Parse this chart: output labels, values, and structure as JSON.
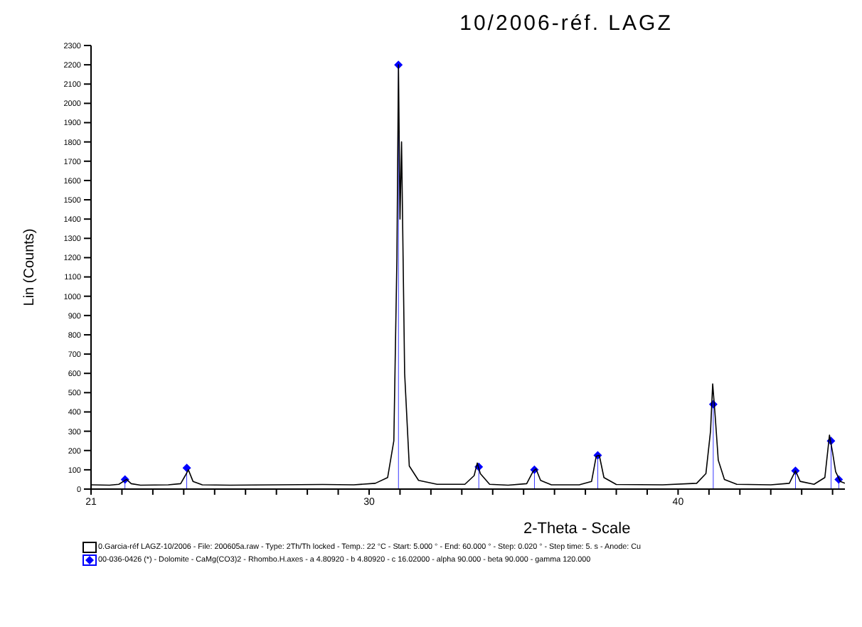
{
  "chart_data": {
    "type": "line",
    "title": "10/2006-réf. LAGZ",
    "xlabel": "2-Theta - Scale",
    "ylabel": "Lin (Counts)",
    "xlim": [
      21,
      45.4
    ],
    "xticks": [
      21,
      {
        "value": 22,
        "label": null
      },
      {
        "value": 23,
        "label": null
      },
      {
        "value": 24,
        "label": null
      },
      {
        "value": 25,
        "label": null
      },
      {
        "value": 26,
        "label": null
      },
      {
        "value": 27,
        "label": null
      },
      {
        "value": 28,
        "label": null
      },
      {
        "value": 29,
        "label": null
      },
      30,
      {
        "value": 31,
        "label": null
      },
      {
        "value": 32,
        "label": null
      },
      {
        "value": 33,
        "label": null
      },
      {
        "value": 34,
        "label": null
      },
      {
        "value": 35,
        "label": null
      },
      {
        "value": 36,
        "label": null
      },
      {
        "value": 37,
        "label": null
      },
      {
        "value": 38,
        "label": null
      },
      {
        "value": 39,
        "label": null
      },
      40,
      {
        "value": 41,
        "label": null
      },
      {
        "value": 42,
        "label": null
      },
      {
        "value": 43,
        "label": null
      },
      {
        "value": 44,
        "label": null
      },
      {
        "value": 45,
        "label": null
      }
    ],
    "ylim": [
      0,
      2300
    ],
    "yticks": [
      0,
      100,
      200,
      300,
      400,
      500,
      600,
      700,
      800,
      900,
      1000,
      1100,
      1200,
      1300,
      1400,
      1500,
      1600,
      1700,
      1800,
      1900,
      2000,
      2100,
      2200,
      2300
    ],
    "grid": false,
    "legend": "bottom",
    "series": [
      {
        "name": "0.Garcia-réf LAGZ-10/2006 - File: 200605a.raw - Type: 2Th/Th locked - Temp.: 22 °C - Start: 5.000 ° - End: 60.000 ° - Step: 0.020 ° - Step time: 5. s - Anode: Cu",
        "color": "#000000",
        "marker": "none",
        "x": [
          21,
          21.6,
          21.9,
          22.05,
          22.15,
          22.3,
          22.6,
          23.5,
          23.9,
          24.05,
          24.15,
          24.3,
          24.6,
          25.5,
          27,
          28.5,
          29.5,
          30.2,
          30.6,
          30.8,
          30.9,
          30.95,
          31.0,
          31.05,
          31.15,
          31.3,
          31.6,
          32.2,
          33.1,
          33.4,
          33.5,
          33.6,
          33.9,
          34.5,
          35.1,
          35.3,
          35.4,
          35.55,
          35.9,
          36.8,
          37.2,
          37.35,
          37.45,
          37.6,
          38,
          39.5,
          40.6,
          40.9,
          41.05,
          41.12,
          41.2,
          41.3,
          41.5,
          41.9,
          43,
          43.6,
          43.8,
          43.95,
          44.4,
          44.75,
          44.9,
          45.0,
          45.1,
          45.25,
          45.4
        ],
        "values": [
          22,
          20,
          25,
          40,
          50,
          28,
          20,
          22,
          28,
          70,
          100,
          40,
          22,
          20,
          22,
          24,
          22,
          30,
          60,
          250,
          1200,
          2200,
          1400,
          1800,
          600,
          120,
          45,
          25,
          25,
          70,
          135,
          80,
          25,
          20,
          28,
          90,
          105,
          45,
          22,
          22,
          40,
          170,
          175,
          60,
          24,
          22,
          30,
          80,
          300,
          545,
          380,
          150,
          50,
          25,
          22,
          30,
          95,
          40,
          25,
          60,
          280,
          190,
          90,
          40,
          30
        ]
      },
      {
        "type": "lollipop",
        "name": "00-036-0426 (*) - Dolomite - CaMg(CO3)2 - Rhombo.H.axes - a 4.80920 - b 4.80920 - c 16.02000 - alpha 90.000 - beta 90.000 - gamma 120.000",
        "color": "#0000ff",
        "marker": "diamond",
        "x": [
          22.1,
          24.1,
          30.95,
          33.55,
          35.35,
          37.4,
          41.14,
          43.8,
          44.95,
          45.2
        ],
        "values": [
          50,
          110,
          2200,
          115,
          100,
          175,
          440,
          95,
          250,
          50
        ]
      }
    ]
  }
}
